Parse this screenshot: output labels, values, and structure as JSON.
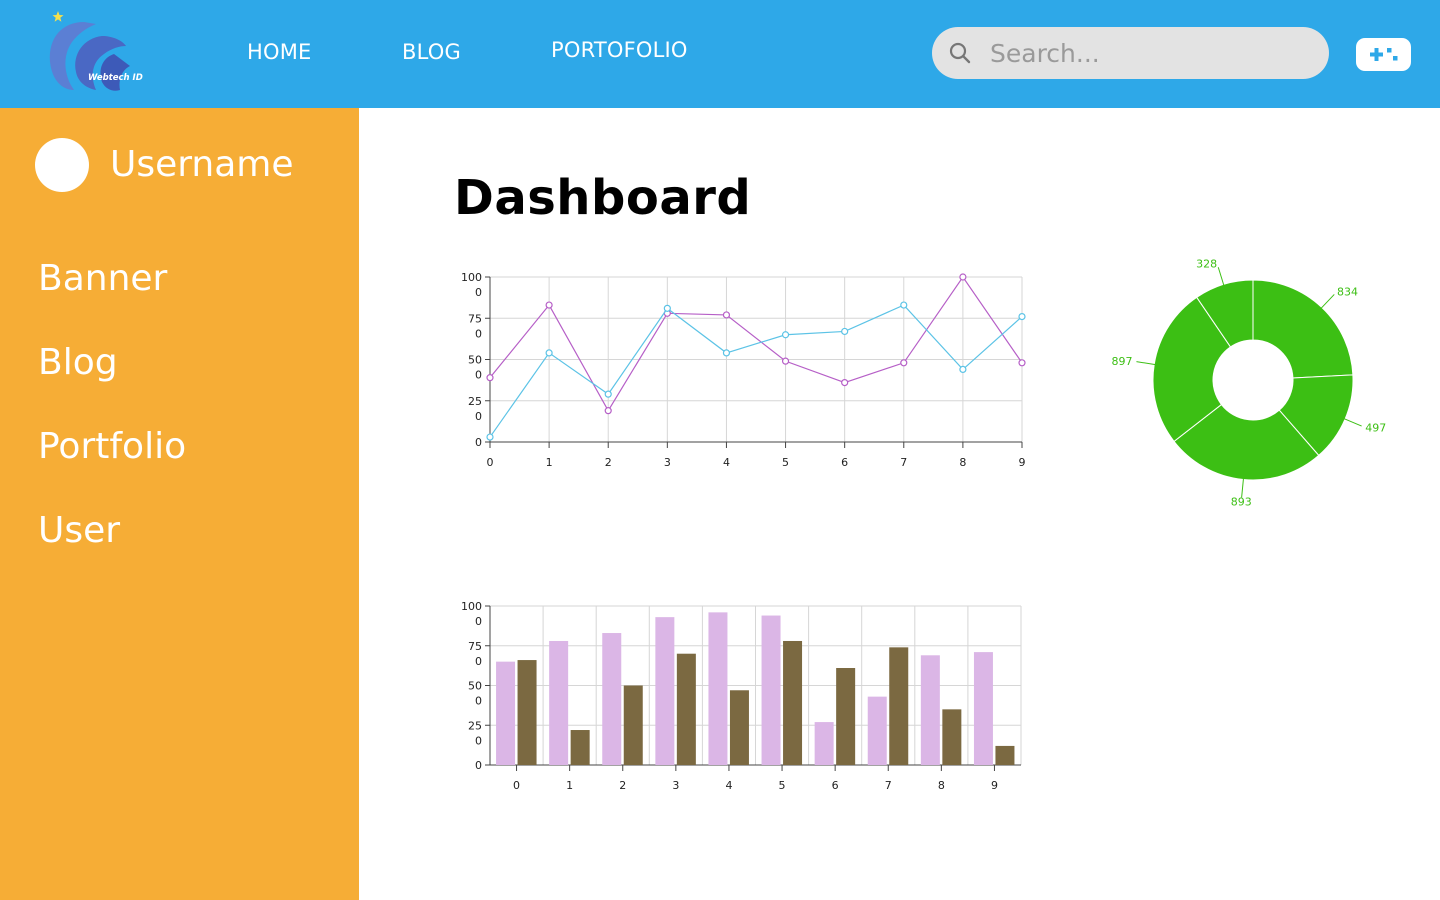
{
  "header": {
    "logo_text": "Webtech ID",
    "nav": [
      {
        "label": "HOME"
      },
      {
        "label": "BLOG"
      },
      {
        "label": "PORTOFOLIO"
      }
    ],
    "search": {
      "placeholder": "Search...",
      "value": ""
    }
  },
  "sidebar": {
    "username": "Username",
    "items": [
      {
        "label": "Banner"
      },
      {
        "label": "Blog"
      },
      {
        "label": "Portfolio"
      },
      {
        "label": "User"
      }
    ]
  },
  "main": {
    "title": "Dashboard"
  },
  "colors": {
    "header": "#2ea8e8",
    "sidebar": "#f6ad36",
    "line_series_a": "#b65fc7",
    "line_series_b": "#5cc3e6",
    "bar_series_a": "#dbb6e6",
    "bar_series_b": "#7b6941",
    "donut": "#3cbf14"
  },
  "chart_data": [
    {
      "type": "line",
      "x": [
        0,
        1,
        2,
        3,
        4,
        5,
        6,
        7,
        8,
        9
      ],
      "x_tick_labels": [
        "0",
        "1",
        "2",
        "3",
        "4",
        "5",
        "6",
        "7",
        "8",
        "9"
      ],
      "y_tick_labels": [
        [
          "0"
        ],
        [
          "25",
          "0"
        ],
        [
          "50",
          "0"
        ],
        [
          "75",
          "0"
        ],
        [
          "100",
          "0"
        ]
      ],
      "ylim": [
        0,
        1000
      ],
      "grid": true,
      "series": [
        {
          "color": "#b65fc7",
          "values": [
            390,
            830,
            190,
            780,
            770,
            490,
            360,
            480,
            1000,
            480
          ]
        },
        {
          "color": "#5cc3e6",
          "values": [
            30,
            540,
            290,
            810,
            540,
            650,
            670,
            830,
            440,
            760
          ]
        }
      ]
    },
    {
      "type": "pie",
      "donut": true,
      "labels": [
        "834",
        "497",
        "893",
        "897",
        "328"
      ],
      "values": [
        834,
        497,
        893,
        897,
        328
      ],
      "color": "#3cbf14"
    },
    {
      "type": "bar",
      "categories": [
        "0",
        "1",
        "2",
        "3",
        "4",
        "5",
        "6",
        "7",
        "8",
        "9"
      ],
      "y_tick_labels": [
        [
          "0"
        ],
        [
          "25",
          "0"
        ],
        [
          "50",
          "0"
        ],
        [
          "75",
          "0"
        ],
        [
          "100",
          "0"
        ]
      ],
      "ylim": [
        0,
        1000
      ],
      "grid": true,
      "series": [
        {
          "color": "#dbb6e6",
          "values": [
            650,
            780,
            830,
            930,
            960,
            940,
            270,
            430,
            690,
            710
          ]
        },
        {
          "color": "#7b6941",
          "values": [
            660,
            220,
            500,
            700,
            470,
            780,
            610,
            740,
            350,
            120
          ]
        }
      ]
    }
  ]
}
